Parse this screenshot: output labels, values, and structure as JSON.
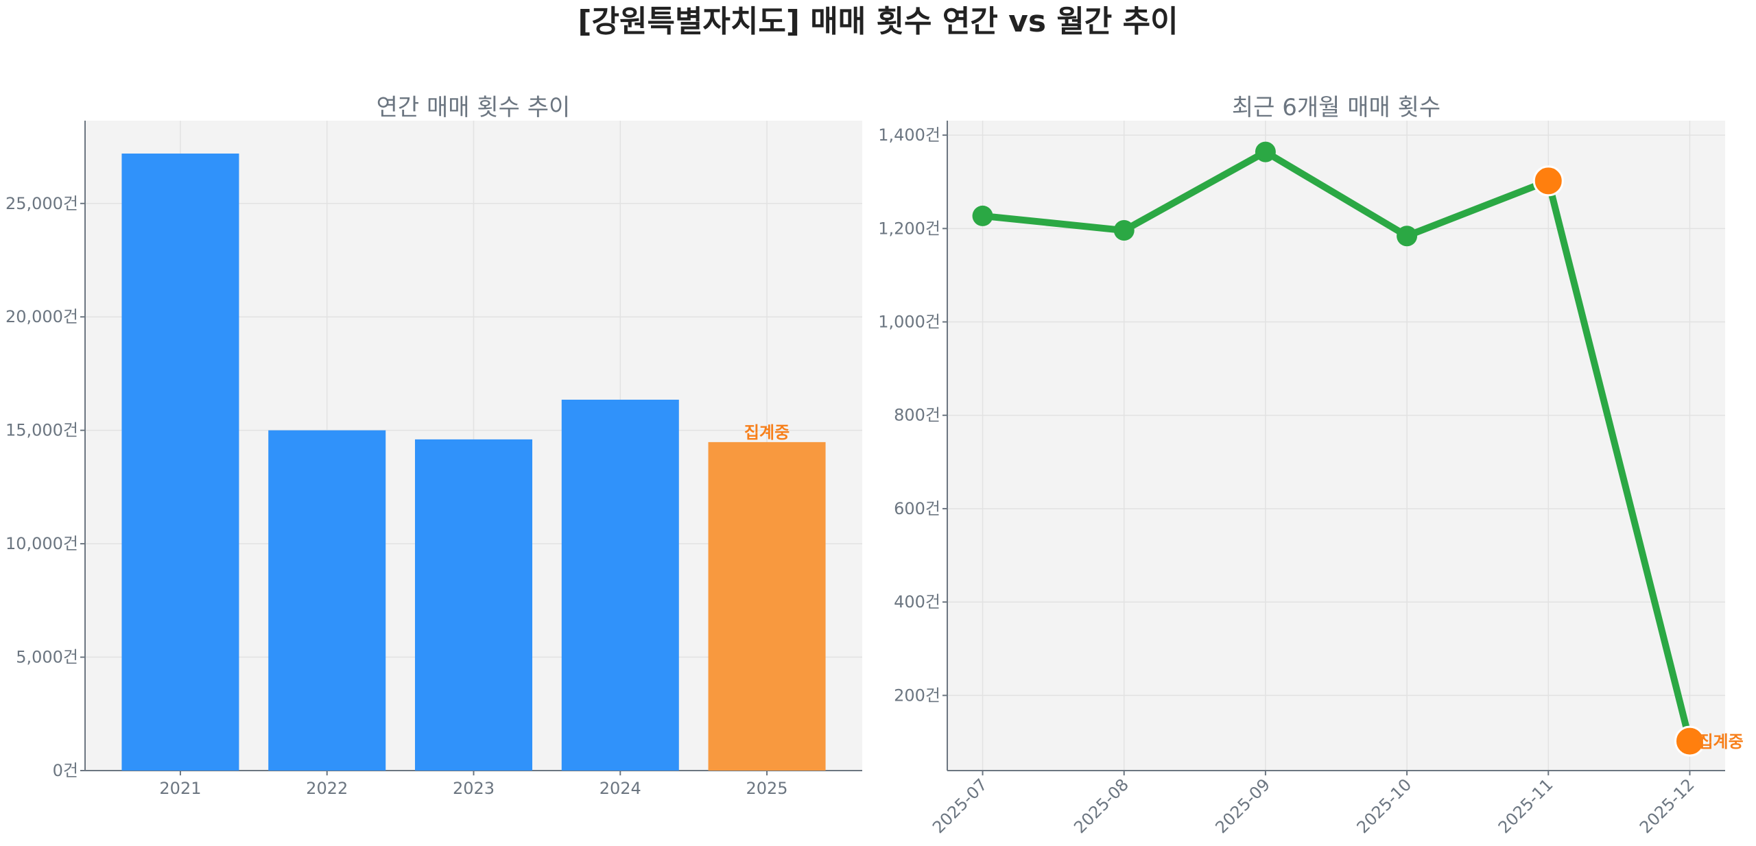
{
  "title": "[강원특별자치도] 매매 횟수 연간 vs 월간 추이",
  "colors": {
    "bar": "#3092FA",
    "bar_partial": "#F8993F",
    "line": "#2BA844",
    "marker_highlight": "#FF7F0E",
    "annotation": "#F77F1A",
    "plot_bg": "#F3F3F3"
  },
  "chart_data": [
    {
      "type": "bar",
      "title": "연간 매매 횟수 추이",
      "categories": [
        "2021",
        "2022",
        "2023",
        "2024",
        "2025"
      ],
      "values": [
        27200,
        15000,
        14600,
        16350,
        14480
      ],
      "highlight_index": 4,
      "annotation": {
        "category": "2025",
        "text": "집계중"
      },
      "ylim": [
        0,
        28650
      ],
      "yticks": [
        0,
        5000,
        10000,
        15000,
        20000,
        25000
      ],
      "ytick_labels": [
        "0건",
        "5,000건",
        "10,000건",
        "15,000건",
        "20,000건",
        "25,000건"
      ],
      "grid": true
    },
    {
      "type": "line",
      "title": "최근 6개월 매매 횟수",
      "categories": [
        "2025-07",
        "2025-08",
        "2025-09",
        "2025-10",
        "2025-11",
        "2025-12"
      ],
      "values": [
        1227,
        1196,
        1364,
        1184,
        1302,
        102
      ],
      "highlight_indices": [
        4,
        5
      ],
      "annotation": {
        "category": "2025-12",
        "text": "집계중"
      },
      "ylim": [
        39,
        1431
      ],
      "yticks": [
        200,
        400,
        600,
        800,
        1000,
        1200,
        1400
      ],
      "ytick_labels": [
        "200건",
        "400건",
        "600건",
        "800건",
        "1,000건",
        "1,200건",
        "1,400건"
      ],
      "grid": true
    }
  ]
}
